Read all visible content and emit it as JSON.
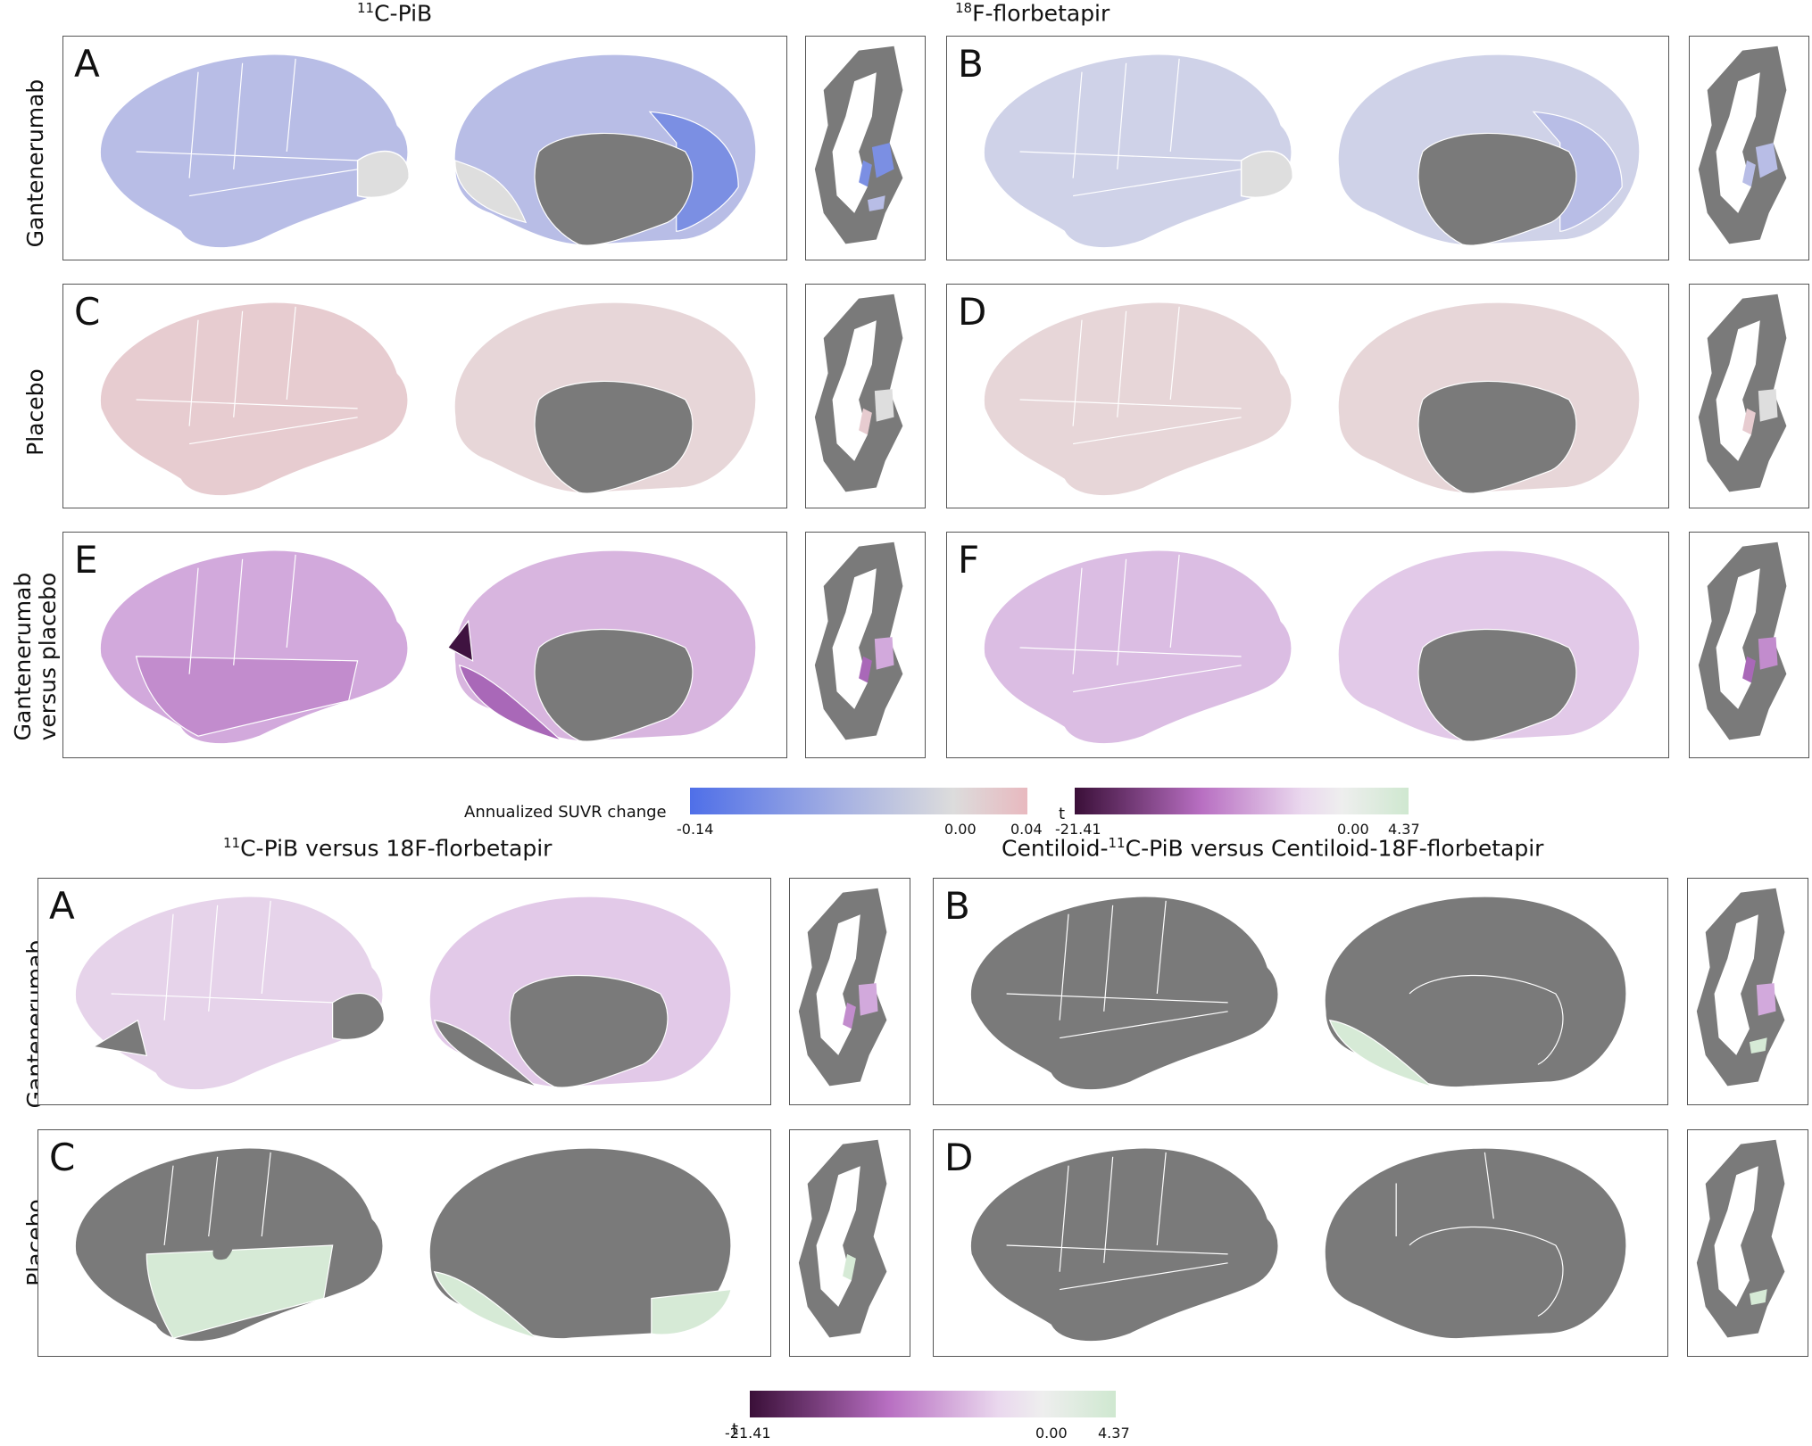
{
  "top_figure": {
    "column_titles": [
      {
        "iso": "11",
        "name": "C-PiB"
      },
      {
        "iso": "18",
        "name": "F-florbetapir"
      }
    ],
    "row_labels": [
      {
        "line1": "Gantenerumab",
        "line2": ""
      },
      {
        "line1": "Placebo",
        "line2": ""
      },
      {
        "line1": "Gantenerumab",
        "line2": "versus placebo"
      }
    ],
    "panel_letters": [
      "A",
      "B",
      "C",
      "D",
      "E",
      "F"
    ],
    "colorbars": {
      "suvr": {
        "label": "Annualized SUVR change",
        "min": "-0.14",
        "mid": "0.00",
        "max": "0.04",
        "colors": [
          "#4f6fe8",
          "#a6b1e2",
          "#dcdcdc",
          "#e8b9bf"
        ]
      },
      "t": {
        "label": "t",
        "min": "-21.41",
        "mid": "0.00",
        "max": "4.37",
        "colors": [
          "#3a0f38",
          "#b86fc2",
          "#ead8ee",
          "#eeeeee",
          "#cfe8d0"
        ]
      }
    }
  },
  "bottom_figure": {
    "column_titles": [
      {
        "pre": "",
        "iso": "11",
        "name": "C-PiB versus 18F-florbetapir"
      },
      {
        "pre": "Centiloid-",
        "iso": "11",
        "name": "C-PiB versus Centiloid-18F-florbetapir"
      }
    ],
    "row_labels": [
      {
        "line1": "Gantenerumab"
      },
      {
        "line1": "Placebo"
      }
    ],
    "panel_letters": [
      "A",
      "B",
      "C",
      "D"
    ],
    "colorbar": {
      "label": "t",
      "min": "-21.41",
      "mid": "0.00",
      "max": "4.37",
      "colors": [
        "#3a0f38",
        "#b86fc2",
        "#ead8ee",
        "#eeeeee",
        "#cfe8d0"
      ]
    }
  },
  "colors": {
    "nonsignificant_gray": "#7a7a7a",
    "gantenerumab_blue": "#b8bde6",
    "gantenerumab_blue_strong": "#7b8fe3",
    "placebo_pink": "#e7ccd0",
    "contrast_purple": "#d2a9dc",
    "contrast_purple_strong": "#a968b8",
    "contrast_purple_dark": "#3f1340",
    "positive_green": "#d6ead6",
    "light_gray": "#dedede"
  }
}
